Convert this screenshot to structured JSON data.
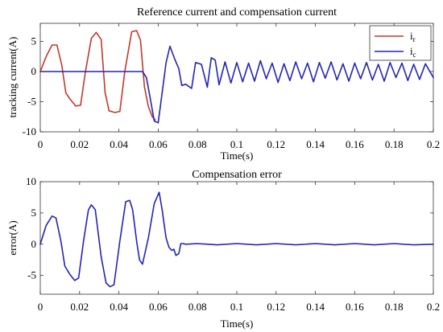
{
  "chart_data": [
    {
      "type": "line",
      "title": "Reference current and compensation current",
      "xlabel": "Time(s)",
      "ylabel": "tracking current(A)",
      "xlim": [
        0,
        0.2
      ],
      "ylim": [
        -10,
        8
      ],
      "xticks": [
        0,
        0.02,
        0.04,
        0.06,
        0.08,
        0.1,
        0.12,
        0.14,
        0.16,
        0.18,
        0.2
      ],
      "xtick_labels": [
        "0",
        "0.02",
        "0.04",
        "0.06",
        "0.08",
        "0.1",
        "0.12",
        "0.14",
        "0.16",
        "0.18",
        "0.2"
      ],
      "yticks": [
        5,
        0,
        -5,
        -10
      ],
      "ytick_labels": [
        "5",
        "0",
        "-5",
        "-10"
      ],
      "grid": false,
      "legend": "top-right",
      "series": [
        {
          "name": "i_r",
          "legend_main": "i",
          "legend_sub": "r",
          "color": "#c0392b",
          "x": [
            0,
            0.003,
            0.006,
            0.0085,
            0.011,
            0.013,
            0.015,
            0.018,
            0.0205,
            0.023,
            0.026,
            0.0285,
            0.031,
            0.033,
            0.035,
            0.038,
            0.0405,
            0.043,
            0.0465,
            0.049,
            0.051,
            0.053,
            0.055,
            0.057,
            0.0585
          ],
          "y": [
            0,
            2.5,
            4.4,
            4.4,
            1,
            -3.5,
            -4.5,
            -5.7,
            -5.6,
            0,
            5.5,
            6.5,
            5.3,
            -3.5,
            -6.5,
            -6.8,
            -6.6,
            0,
            6.6,
            6.8,
            5.2,
            -2.5,
            -5.8,
            -7.5,
            -8
          ]
        },
        {
          "name": "i_c",
          "legend_main": "i",
          "legend_sub": "c",
          "color": "#2424b4",
          "x": [
            0,
            0.05,
            0.052,
            0.054,
            0.056,
            0.058,
            0.06,
            0.062,
            0.064,
            0.066,
            0.0685,
            0.0705,
            0.072,
            0.074,
            0.077,
            0.079,
            0.082,
            0.085,
            0.087,
            0.089,
            0.091,
            0.094,
            0.097,
            0.1,
            0.103,
            0.106,
            0.109,
            0.112,
            0.115,
            0.118,
            0.121,
            0.124,
            0.127,
            0.13,
            0.133,
            0.136,
            0.139,
            0.142,
            0.145,
            0.148,
            0.151,
            0.154,
            0.157,
            0.16,
            0.163,
            0.166,
            0.169,
            0.172,
            0.175,
            0.178,
            0.181,
            0.184,
            0.187,
            0.19,
            0.193,
            0.196,
            0.2
          ],
          "y": [
            0,
            0,
            0,
            -1,
            -4.5,
            -8.2,
            -8.5,
            -3.5,
            1.5,
            4.2,
            2,
            0.5,
            -2.3,
            -2.1,
            -2.8,
            1.5,
            1.2,
            -2.6,
            2.3,
            1.9,
            -2.2,
            1.6,
            -1.9,
            1.5,
            -1.7,
            1.4,
            -1.6,
            1.8,
            -1.2,
            1.4,
            -1.8,
            1.3,
            -1.5,
            1.6,
            -1.2,
            1.4,
            -1.7,
            1.5,
            -1.1,
            1.6,
            -1.4,
            1.3,
            -1.6,
            1.4,
            -1.2,
            1.5,
            -1.4,
            1.2,
            -1.6,
            1.5,
            -1,
            1.4,
            -1.5,
            1.2,
            -1.3,
            1.3,
            -1
          ]
        }
      ]
    },
    {
      "type": "line",
      "title": "Compensation error",
      "xlabel": "Time(s)",
      "ylabel": "error(A)",
      "xlim": [
        0,
        0.2
      ],
      "ylim": [
        -8,
        10
      ],
      "xticks": [
        0,
        0.02,
        0.04,
        0.06,
        0.08,
        0.1,
        0.12,
        0.14,
        0.16,
        0.18,
        0.2
      ],
      "xtick_labels": [
        "0",
        "0.02",
        "0.04",
        "0.06",
        "0.08",
        "0.1",
        "0.12",
        "0.14",
        "0.16",
        "0.18",
        "0.2"
      ],
      "yticks": [
        10,
        5,
        0,
        -5
      ],
      "ytick_labels": [
        "10",
        "5",
        "0",
        "-5"
      ],
      "grid": false,
      "series": [
        {
          "color": "#2424b4",
          "x": [
            0,
            0.003,
            0.006,
            0.008,
            0.0105,
            0.0125,
            0.015,
            0.0175,
            0.0195,
            0.022,
            0.0245,
            0.026,
            0.028,
            0.031,
            0.0335,
            0.0355,
            0.0375,
            0.0405,
            0.0435,
            0.0455,
            0.047,
            0.049,
            0.0505,
            0.052,
            0.055,
            0.058,
            0.0605,
            0.062,
            0.064,
            0.0655,
            0.067,
            0.068,
            0.069,
            0.0705,
            0.0715,
            0.0725,
            0.074,
            0.08,
            0.09,
            0.1,
            0.11,
            0.12,
            0.13,
            0.14,
            0.15,
            0.16,
            0.17,
            0.18,
            0.19,
            0.2
          ],
          "y": [
            0,
            3,
            4.5,
            4.2,
            0.5,
            -3.5,
            -4.8,
            -5.8,
            -5.4,
            0.5,
            5.5,
            6.3,
            5.5,
            -2,
            -6.2,
            -6.8,
            -6.5,
            0.5,
            6.8,
            7,
            5.5,
            0.5,
            -2.5,
            -3.2,
            1,
            6.5,
            8.3,
            5.5,
            1,
            -0.5,
            -1,
            -0.8,
            -1.8,
            -1.5,
            0.1,
            0.1,
            0,
            0.1,
            -0.1,
            0.1,
            -0.1,
            0.1,
            -0.1,
            0.1,
            -0.1,
            0.1,
            -0.1,
            0.1,
            -0.1,
            0
          ]
        }
      ]
    }
  ]
}
